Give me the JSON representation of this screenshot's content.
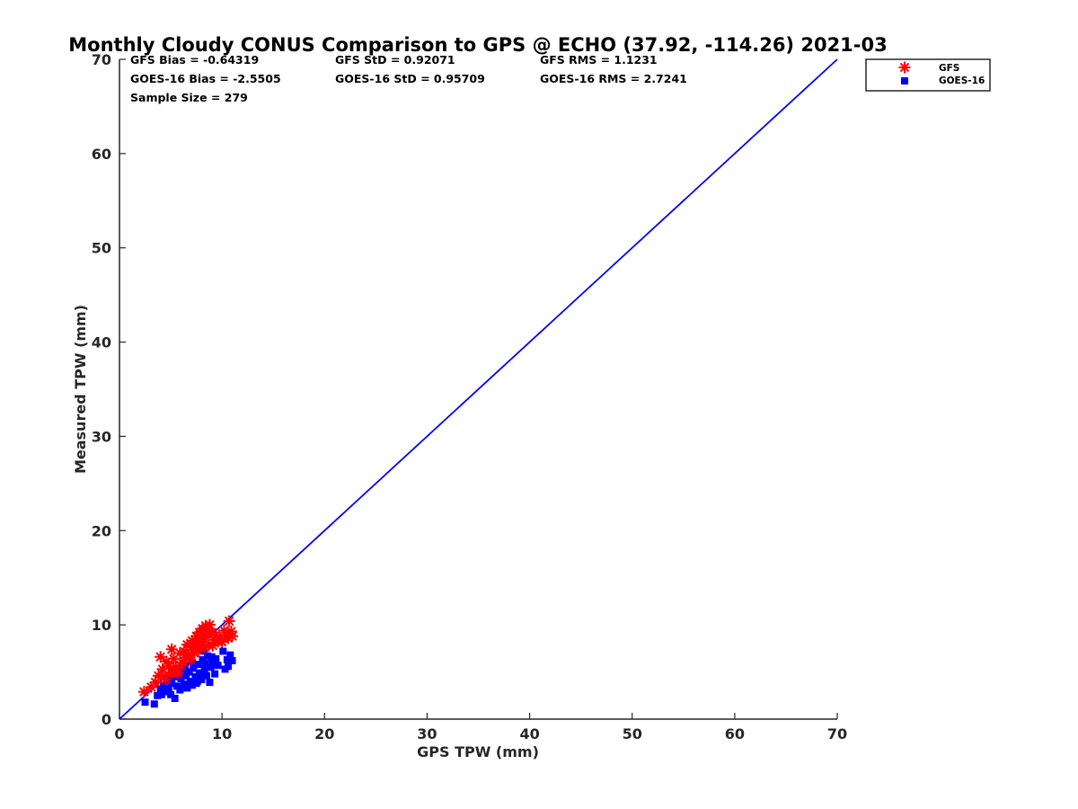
{
  "chart_data": {
    "type": "scatter",
    "title": "Monthly Cloudy CONUS Comparison to GPS @ ECHO (37.92, -114.26) 2021-03",
    "xlabel": "GPS TPW (mm)",
    "ylabel": "Measured TPW (mm)",
    "xlim": [
      0,
      70
    ],
    "ylim": [
      0,
      70
    ],
    "xticks": [
      "0",
      "10",
      "20",
      "30",
      "40",
      "50",
      "60",
      "70"
    ],
    "yticks": [
      "0",
      "10",
      "20",
      "30",
      "40",
      "50",
      "60",
      "70"
    ],
    "grid": false,
    "legend_position": "outside top-right",
    "stats": [
      "GFS Bias = -0.64319",
      "GFS StD = 0.92071",
      "GFS RMS = 1.1231",
      "GOES-16 Bias = -2.5505",
      "GOES-16 StD = 0.95709",
      "GOES-16 RMS = 2.7241",
      "Sample Size = 279"
    ],
    "reference_line": {
      "x": [
        0,
        70
      ],
      "y": [
        0,
        70
      ],
      "color": "#0000ff"
    },
    "series": [
      {
        "name": "GFS",
        "marker": "asterisk",
        "color": "#ff0000",
        "points": [
          [
            2.4,
            2.9
          ],
          [
            3.1,
            3.4
          ],
          [
            3.5,
            3.9
          ],
          [
            3.8,
            4.6
          ],
          [
            4.0,
            6.6
          ],
          [
            4.2,
            5.3
          ],
          [
            4.4,
            4.5
          ],
          [
            4.6,
            6.1
          ],
          [
            4.8,
            5.6
          ],
          [
            5.0,
            5.0
          ],
          [
            5.1,
            7.4
          ],
          [
            5.3,
            6.4
          ],
          [
            5.5,
            5.5
          ],
          [
            5.7,
            4.9
          ],
          [
            5.9,
            7.0
          ],
          [
            6.1,
            6.0
          ],
          [
            6.3,
            7.2
          ],
          [
            6.5,
            6.5
          ],
          [
            6.6,
            7.9
          ],
          [
            6.8,
            6.8
          ],
          [
            7.0,
            7.6
          ],
          [
            7.1,
            8.3
          ],
          [
            7.3,
            7.0
          ],
          [
            7.5,
            8.8
          ],
          [
            7.6,
            7.7
          ],
          [
            7.8,
            9.2
          ],
          [
            7.9,
            8.2
          ],
          [
            8.1,
            9.6
          ],
          [
            8.2,
            8.6
          ],
          [
            8.4,
            9.9
          ],
          [
            8.5,
            9.0
          ],
          [
            8.7,
            7.9
          ],
          [
            8.8,
            10.0
          ],
          [
            9.0,
            9.2
          ],
          [
            9.2,
            8.4
          ],
          [
            9.4,
            8.9
          ],
          [
            9.6,
            8.2
          ],
          [
            9.8,
            8.6
          ],
          [
            10.0,
            8.2
          ],
          [
            10.2,
            9.4
          ],
          [
            10.4,
            8.9
          ],
          [
            10.6,
            8.6
          ],
          [
            10.7,
            10.4
          ],
          [
            10.9,
            9.3
          ],
          [
            11.0,
            8.8
          ],
          [
            6.0,
            5.7
          ],
          [
            6.9,
            6.3
          ],
          [
            7.7,
            7.3
          ],
          [
            8.3,
            7.6
          ],
          [
            9.1,
            7.8
          ],
          [
            5.2,
            4.9
          ],
          [
            4.5,
            4.2
          ],
          [
            7.4,
            8.0
          ],
          [
            8.6,
            9.4
          ]
        ]
      },
      {
        "name": "GOES-16",
        "marker": "square",
        "color": "#0000ff",
        "points": [
          [
            2.5,
            1.8
          ],
          [
            3.4,
            1.6
          ],
          [
            3.7,
            2.5
          ],
          [
            4.0,
            3.2
          ],
          [
            4.1,
            2.6
          ],
          [
            4.3,
            3.6
          ],
          [
            4.5,
            2.9
          ],
          [
            4.7,
            4.1
          ],
          [
            4.8,
            3.3
          ],
          [
            5.0,
            2.6
          ],
          [
            5.1,
            3.8
          ],
          [
            5.3,
            4.5
          ],
          [
            5.4,
            2.2
          ],
          [
            5.6,
            3.5
          ],
          [
            5.7,
            4.8
          ],
          [
            5.9,
            3.1
          ],
          [
            6.0,
            4.3
          ],
          [
            6.2,
            5.2
          ],
          [
            6.3,
            3.7
          ],
          [
            6.5,
            4.6
          ],
          [
            6.6,
            3.3
          ],
          [
            6.8,
            5.0
          ],
          [
            6.9,
            4.0
          ],
          [
            7.1,
            3.6
          ],
          [
            7.2,
            5.4
          ],
          [
            7.4,
            4.5
          ],
          [
            7.5,
            3.8
          ],
          [
            7.7,
            5.8
          ],
          [
            7.8,
            4.9
          ],
          [
            8.0,
            4.2
          ],
          [
            8.1,
            6.3
          ],
          [
            8.2,
            7.2
          ],
          [
            8.3,
            5.3
          ],
          [
            8.5,
            4.6
          ],
          [
            8.6,
            6.7
          ],
          [
            8.8,
            3.9
          ],
          [
            8.9,
            5.5
          ],
          [
            9.1,
            6.0
          ],
          [
            9.3,
            4.8
          ],
          [
            9.4,
            6.4
          ],
          [
            9.6,
            5.7
          ],
          [
            10.1,
            7.2
          ],
          [
            10.3,
            5.3
          ],
          [
            10.5,
            6.3
          ],
          [
            10.8,
            6.8
          ],
          [
            11.0,
            6.2
          ],
          [
            10.6,
            5.6
          ],
          [
            7.0,
            6.1
          ],
          [
            6.4,
            5.6
          ],
          [
            5.8,
            5.1
          ],
          [
            4.9,
            4.4
          ],
          [
            8.4,
            5.9
          ],
          [
            9.0,
            6.6
          ],
          [
            7.6,
            4.0
          ]
        ]
      }
    ]
  }
}
